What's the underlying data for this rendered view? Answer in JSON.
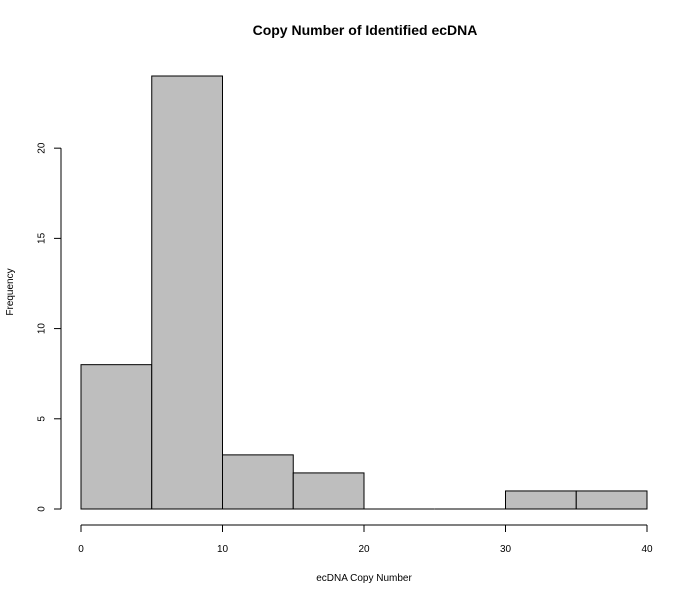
{
  "chart_data": {
    "type": "bar",
    "title": "Copy Number of Identified ecDNA",
    "xlabel": "ecDNA Copy Number",
    "ylabel": "Frequency",
    "bins": [
      {
        "start": 0,
        "end": 5,
        "value": 8
      },
      {
        "start": 5,
        "end": 10,
        "value": 24
      },
      {
        "start": 10,
        "end": 15,
        "value": 3
      },
      {
        "start": 15,
        "end": 20,
        "value": 2
      },
      {
        "start": 20,
        "end": 25,
        "value": 0
      },
      {
        "start": 25,
        "end": 30,
        "value": 0
      },
      {
        "start": 30,
        "end": 35,
        "value": 1
      },
      {
        "start": 35,
        "end": 40,
        "value": 1
      }
    ],
    "xlim": [
      0,
      40
    ],
    "ylim": [
      0,
      24
    ],
    "xticks": [
      0,
      10,
      20,
      30,
      40
    ],
    "yticks": [
      0,
      5,
      10,
      15,
      20
    ],
    "grid": false,
    "bar_color": "#bebebe",
    "edge_color": "#000000"
  }
}
